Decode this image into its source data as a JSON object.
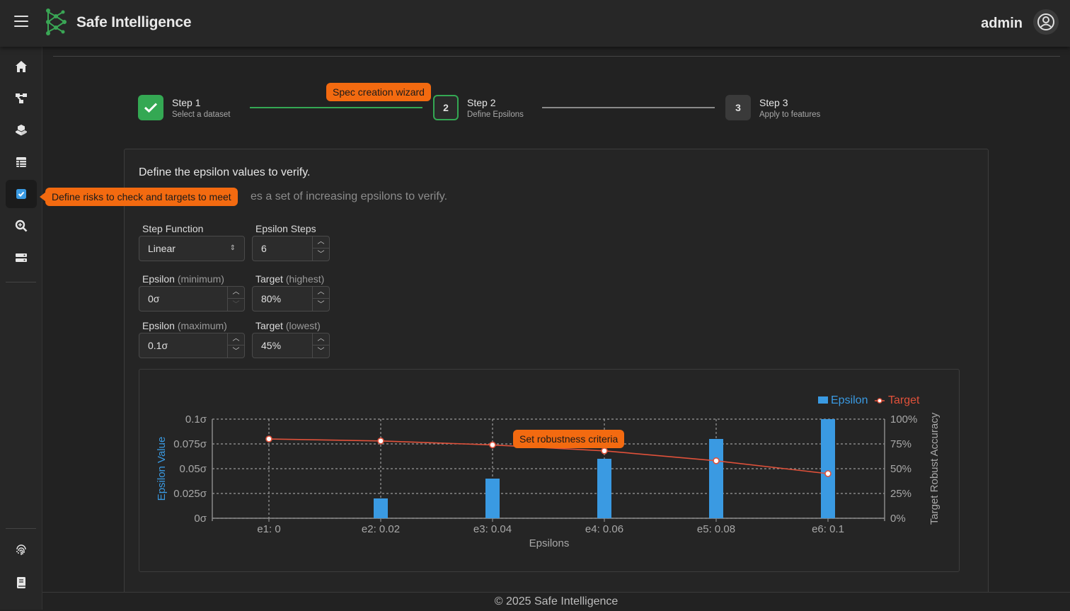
{
  "app": {
    "brand": "Safe Intelligence",
    "user": "admin",
    "footer": "© 2025 Safe Intelligence"
  },
  "sidebar": {
    "items": [
      {
        "icon": "home-icon",
        "active": false
      },
      {
        "icon": "model-graph-icon",
        "active": false
      },
      {
        "icon": "cubes-icon",
        "active": false
      },
      {
        "icon": "table-icon",
        "active": false
      },
      {
        "icon": "checkbox-icon",
        "active": true
      },
      {
        "icon": "search-zoom-icon",
        "active": false
      },
      {
        "icon": "server-icon",
        "active": false
      },
      {
        "icon": "fingerprint-icon",
        "active": false
      },
      {
        "icon": "book-icon",
        "active": false
      }
    ],
    "tooltip": "Define risks to check and targets to meet"
  },
  "wizard": {
    "tooltip": "Spec creation wizard",
    "steps": [
      {
        "badge": "",
        "title": "Step 1",
        "subtitle": "Select a dataset",
        "state": "done"
      },
      {
        "badge": "2",
        "title": "Step 2",
        "subtitle": "Define Epsilons",
        "state": "current"
      },
      {
        "badge": "3",
        "title": "Step 3",
        "subtitle": "Apply to features",
        "state": "pending"
      }
    ]
  },
  "form": {
    "title": "Define the epsilon values to verify.",
    "description_visible": "es a set of increasing epsilons to verify.",
    "step_function": {
      "label": "Step Function",
      "value": "Linear"
    },
    "epsilon_steps": {
      "label": "Epsilon Steps",
      "value": "6"
    },
    "epsilon_min": {
      "label": "Epsilon",
      "qualifier": "(minimum)",
      "value": "0σ"
    },
    "target_high": {
      "label": "Target",
      "qualifier": "(highest)",
      "value": "80%"
    },
    "epsilon_max": {
      "label": "Epsilon",
      "qualifier": "(maximum)",
      "value": "0.1σ"
    },
    "target_low": {
      "label": "Target",
      "qualifier": "(lowest)",
      "value": "45%"
    }
  },
  "chart_tooltip": "Set robustness criteria",
  "chart_data": {
    "type": "bar",
    "categories": [
      "e1: 0",
      "e2: 0.02",
      "e3: 0.04",
      "e4: 0.06",
      "e5: 0.08",
      "e6: 0.1"
    ],
    "series": [
      {
        "name": "Epsilon",
        "type": "bar",
        "axis": "left",
        "color": "#3a9ae2",
        "values": [
          0,
          0.02,
          0.04,
          0.06,
          0.08,
          0.1
        ]
      },
      {
        "name": "Target",
        "type": "line",
        "axis": "right",
        "color": "#e0513a",
        "values": [
          80,
          78,
          74,
          68,
          58,
          45
        ]
      }
    ],
    "xlabel": "Epsilons",
    "ylabel": "Epsilon Value",
    "y2label": "Target Robust Accuracy",
    "ylim": [
      0,
      0.1
    ],
    "y2lim": [
      0,
      100
    ],
    "yticks": [
      "0σ",
      "0.025σ",
      "0.05σ",
      "0.075σ",
      "0.1σ"
    ],
    "y2ticks": [
      "0%",
      "25%",
      "50%",
      "75%",
      "100%"
    ],
    "grid": true,
    "legend": "top-right"
  }
}
